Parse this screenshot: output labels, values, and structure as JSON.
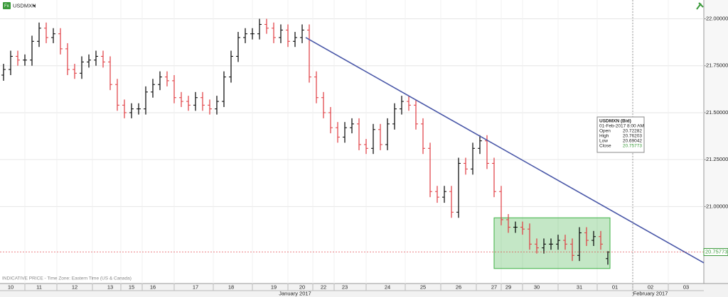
{
  "chart_data": {
    "type": "ohlc",
    "symbol": "USDMXN",
    "footnote": "INDICATIVE PRICE - Time Zone: Eastern Time (US & Canada)",
    "categories": [
      null,
      "10",
      null,
      null,
      null,
      "11",
      null,
      null,
      null,
      null,
      "12",
      null,
      null,
      null,
      null,
      "13",
      null,
      null,
      "15",
      null,
      null,
      "16",
      null,
      null,
      null,
      null,
      null,
      "17",
      null,
      null,
      null,
      null,
      "18",
      null,
      null,
      null,
      null,
      null,
      "19",
      null,
      null,
      null,
      "20",
      null,
      null,
      "22",
      null,
      null,
      "23",
      null,
      null,
      null,
      null,
      null,
      "24",
      null,
      null,
      null,
      null,
      "25",
      null,
      null,
      null,
      null,
      "26",
      null,
      null,
      null,
      null,
      "27",
      null,
      "29",
      null,
      null,
      null,
      "30",
      null,
      null,
      null,
      null,
      null,
      "31",
      null,
      null,
      null,
      null,
      "01",
      null,
      null,
      null,
      null,
      "02",
      null,
      null,
      null,
      null,
      "03",
      null,
      null
    ],
    "month_categories": [
      null,
      null,
      null,
      null,
      null,
      null,
      null,
      null,
      null,
      null,
      null,
      null,
      null,
      null,
      null,
      null,
      null,
      null,
      null,
      null,
      null,
      null,
      null,
      null,
      null,
      null,
      null,
      null,
      null,
      null,
      null,
      null,
      null,
      null,
      null,
      null,
      null,
      null,
      null,
      null,
      null,
      "January 2017",
      null,
      null,
      null,
      null,
      null,
      null,
      null,
      null,
      null,
      null,
      null,
      null,
      null,
      null,
      null,
      null,
      null,
      null,
      null,
      null,
      null,
      null,
      null,
      null,
      null,
      null,
      null,
      null,
      null,
      null,
      null,
      null,
      null,
      null,
      null,
      null,
      null,
      null,
      null,
      null,
      null,
      null,
      null,
      null,
      null,
      null,
      null,
      null,
      null,
      "February 2017",
      null,
      null,
      null,
      null,
      null,
      null,
      null
    ],
    "open": [
      21.7,
      21.73,
      21.8,
      21.78,
      21.78,
      21.88,
      21.95,
      21.9,
      21.92,
      21.84,
      21.73,
      21.71,
      21.77,
      21.78,
      21.8,
      21.77,
      21.65,
      21.54,
      21.5,
      21.52,
      21.52,
      21.61,
      21.65,
      21.69,
      21.67,
      21.58,
      21.56,
      21.54,
      21.58,
      21.54,
      21.52,
      21.56,
      21.69,
      21.8,
      21.9,
      21.92,
      21.92,
      21.97,
      21.95,
      21.9,
      21.94,
      21.88,
      21.9,
      21.94,
      21.69,
      21.58,
      21.5,
      21.42,
      21.37,
      21.42,
      21.44,
      21.33,
      21.31,
      21.41,
      21.33,
      21.44,
      21.52,
      21.56,
      21.54,
      21.44,
      21.31,
      21.08,
      21.05,
      21.08,
      20.97,
      21.23,
      21.2,
      21.31,
      21.35,
      21.23,
      21.08,
      20.93,
      20.89,
      20.89,
      20.88,
      20.8,
      20.78,
      20.8,
      20.8,
      20.82,
      20.8,
      20.74,
      20.86,
      20.82,
      20.84,
      20.72282,
      null,
      null,
      null,
      null,
      null,
      null,
      null,
      null,
      null,
      null,
      null,
      null,
      null
    ],
    "high": [
      21.76,
      21.83,
      21.83,
      21.81,
      21.91,
      21.98,
      21.98,
      21.95,
      21.95,
      21.87,
      21.76,
      21.8,
      21.81,
      21.83,
      21.83,
      21.8,
      21.68,
      21.57,
      21.55,
      21.55,
      21.64,
      21.68,
      21.72,
      21.72,
      21.7,
      21.61,
      21.59,
      21.61,
      21.61,
      21.57,
      21.59,
      21.72,
      21.83,
      21.93,
      21.95,
      21.95,
      22.0,
      22.0,
      21.98,
      21.97,
      21.97,
      21.93,
      21.97,
      21.97,
      21.72,
      21.61,
      21.53,
      21.45,
      21.45,
      21.47,
      21.47,
      21.36,
      21.44,
      21.44,
      21.47,
      21.55,
      21.59,
      21.59,
      21.57,
      21.47,
      21.34,
      21.11,
      21.11,
      21.11,
      21.26,
      21.26,
      21.34,
      21.38,
      21.38,
      21.26,
      21.11,
      20.96,
      20.92,
      20.92,
      20.91,
      20.83,
      20.83,
      20.83,
      20.85,
      20.85,
      20.83,
      20.89,
      20.89,
      20.87,
      20.87,
      20.76203,
      null,
      null,
      null,
      null,
      null,
      null,
      null,
      null,
      null,
      null,
      null,
      null,
      null
    ],
    "low": [
      21.67,
      21.7,
      21.75,
      21.75,
      21.75,
      21.85,
      21.87,
      21.87,
      21.81,
      21.7,
      21.68,
      21.68,
      21.74,
      21.75,
      21.74,
      21.62,
      21.51,
      21.47,
      21.47,
      21.49,
      21.49,
      21.58,
      21.62,
      21.64,
      21.55,
      21.53,
      21.51,
      21.51,
      21.51,
      21.49,
      21.49,
      21.53,
      21.66,
      21.77,
      21.87,
      21.89,
      21.89,
      21.92,
      21.87,
      21.87,
      21.85,
      21.85,
      21.87,
      21.66,
      21.55,
      21.47,
      21.39,
      21.34,
      21.34,
      21.39,
      21.3,
      21.28,
      21.28,
      21.3,
      21.3,
      21.41,
      21.49,
      21.51,
      21.41,
      21.28,
      21.05,
      21.02,
      21.02,
      20.94,
      20.94,
      21.17,
      21.17,
      21.28,
      21.2,
      21.05,
      20.9,
      20.86,
      20.86,
      20.85,
      20.77,
      20.75,
      20.75,
      20.77,
      20.77,
      20.77,
      20.71,
      20.71,
      20.79,
      20.79,
      20.77,
      20.69042,
      null,
      null,
      null,
      null,
      null,
      null,
      null,
      null,
      null,
      null,
      null,
      null,
      null
    ],
    "close": [
      21.73,
      21.8,
      21.78,
      21.78,
      21.88,
      21.95,
      21.9,
      21.92,
      21.84,
      21.73,
      21.71,
      21.77,
      21.78,
      21.8,
      21.77,
      21.65,
      21.54,
      21.5,
      21.52,
      21.52,
      21.61,
      21.65,
      21.69,
      21.67,
      21.58,
      21.56,
      21.54,
      21.58,
      21.54,
      21.52,
      21.56,
      21.69,
      21.8,
      21.9,
      21.92,
      21.92,
      21.97,
      21.95,
      21.9,
      21.94,
      21.88,
      21.9,
      21.94,
      21.69,
      21.58,
      21.5,
      21.42,
      21.37,
      21.42,
      21.44,
      21.33,
      21.31,
      21.41,
      21.33,
      21.44,
      21.52,
      21.56,
      21.54,
      21.44,
      21.31,
      21.08,
      21.05,
      21.08,
      20.97,
      21.23,
      21.2,
      21.31,
      21.35,
      21.23,
      21.08,
      20.93,
      20.89,
      20.89,
      20.88,
      20.8,
      20.78,
      20.8,
      20.8,
      20.82,
      20.8,
      20.74,
      20.86,
      20.82,
      20.84,
      20.8,
      20.75773,
      null,
      null,
      null,
      null,
      null,
      null,
      null,
      null,
      null,
      null,
      null,
      null,
      null
    ],
    "xlim": [
      -0.5,
      98.5
    ],
    "ylim": [
      20.59,
      22.1
    ],
    "yticks": [
      {
        "value": 21,
        "label": "21.00000"
      },
      {
        "value": 21.25,
        "label": "21.25000"
      },
      {
        "value": 21.5,
        "label": "21.50000"
      },
      {
        "value": 21.75,
        "label": "21.75000"
      },
      {
        "value": 22,
        "label": "22.00000"
      }
    ],
    "grid": true,
    "up_color": "#000000",
    "down_color": "#e0393e",
    "tooltip": {
      "title": "USDMXN (Bid)",
      "date": "01-Feb-2017 8:00 AM",
      "labels": [
        "Open",
        "High",
        "Low",
        "Close"
      ]
    },
    "trendline": {
      "x": [
        42.5,
        98.5
      ],
      "y": [
        21.9,
        20.7
      ],
      "color": "#4a58a8"
    },
    "box": {
      "x": [
        69,
        85.3
      ],
      "y": [
        20.67,
        20.94
      ],
      "color": "#3cb043"
    }
  }
}
